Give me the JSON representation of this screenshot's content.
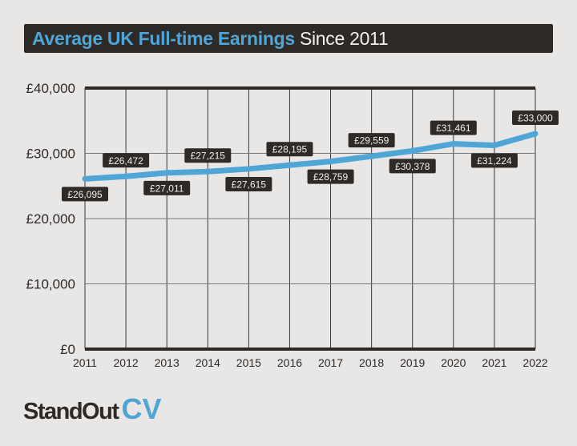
{
  "chart_data": {
    "type": "line",
    "title": "Average UK Full-time Earnings",
    "subtitle": "Since 2011",
    "categories": [
      "2011",
      "2012",
      "2013",
      "2014",
      "2015",
      "2016",
      "2017",
      "2018",
      "2019",
      "2020",
      "2021",
      "2022"
    ],
    "values": [
      26095,
      26472,
      27011,
      27215,
      27615,
      28195,
      28759,
      29559,
      30378,
      31461,
      31224,
      33000
    ],
    "data_labels": [
      "£26,095",
      "£26,472",
      "£27,011",
      "£27,215",
      "£27,615",
      "£28,195",
      "£28,759",
      "£29,559",
      "£30,378",
      "£31,461",
      "£31,224",
      "£33,000"
    ],
    "y_ticks": [
      0,
      10000,
      20000,
      30000,
      40000
    ],
    "y_tick_labels": [
      "£0",
      "£10,000",
      "£20,000",
      "£30,000",
      "£40,000"
    ],
    "ylim": [
      0,
      40000
    ],
    "xlabel": "",
    "ylabel": "",
    "grid": true,
    "line_color": "#4fa6d6"
  },
  "brand": {
    "part1": "StandOut",
    "part2": "CV"
  }
}
